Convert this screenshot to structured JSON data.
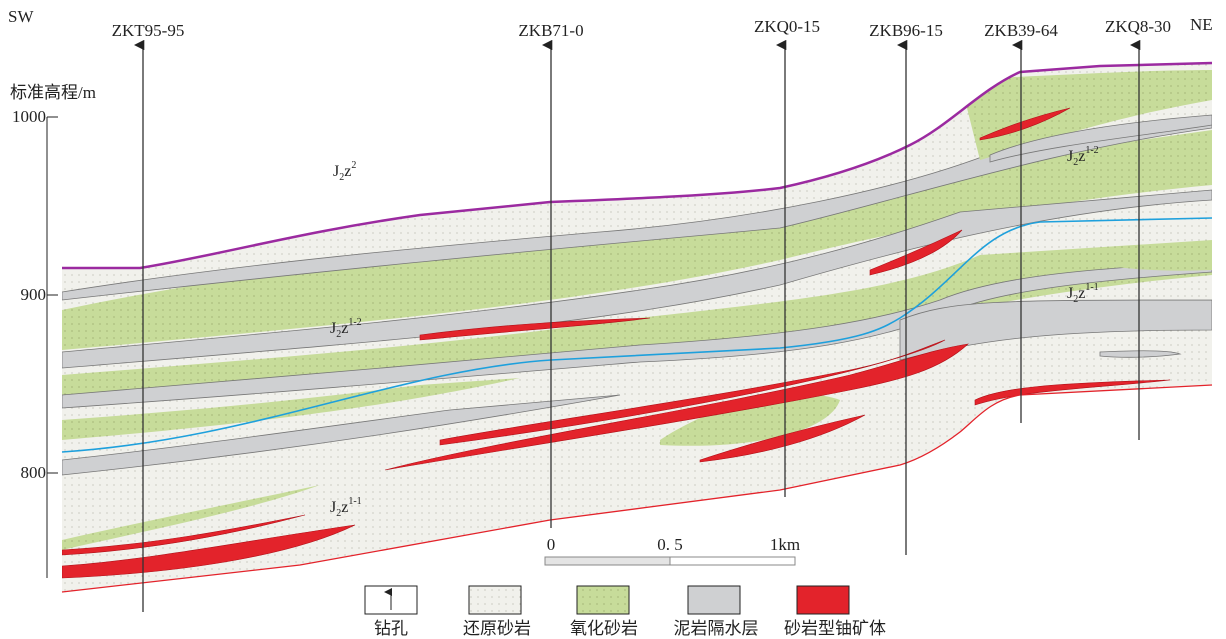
{
  "orientation": {
    "left": "SW",
    "right": "NE"
  },
  "axis": {
    "label": "标准高程/m",
    "ticks": [
      "1000",
      "900",
      "800"
    ]
  },
  "boreholes": [
    "ZKT95-95",
    "ZKB71-0",
    "ZKQ0-15",
    "ZKB96-15",
    "ZKB39-64",
    "ZKQ8-30"
  ],
  "formations": [
    {
      "base": "J",
      "sub": "2",
      "letter": "z",
      "sup": "2"
    },
    {
      "base": "J",
      "sub": "2",
      "letter": "z",
      "sup": "1-2"
    },
    {
      "base": "J",
      "sub": "2",
      "letter": "z",
      "sup": "1-1"
    },
    {
      "base": "J",
      "sub": "2",
      "letter": "z",
      "sup": "1-2"
    },
    {
      "base": "J",
      "sub": "2",
      "letter": "z",
      "sup": "1-1"
    }
  ],
  "scale_bar": {
    "labels": [
      "0",
      "0. 5",
      "1km"
    ]
  },
  "legend": [
    "钻孔",
    "还原砂岩",
    "氧化砂岩",
    "泥岩隔水层",
    "砂岩型铀矿体"
  ]
}
